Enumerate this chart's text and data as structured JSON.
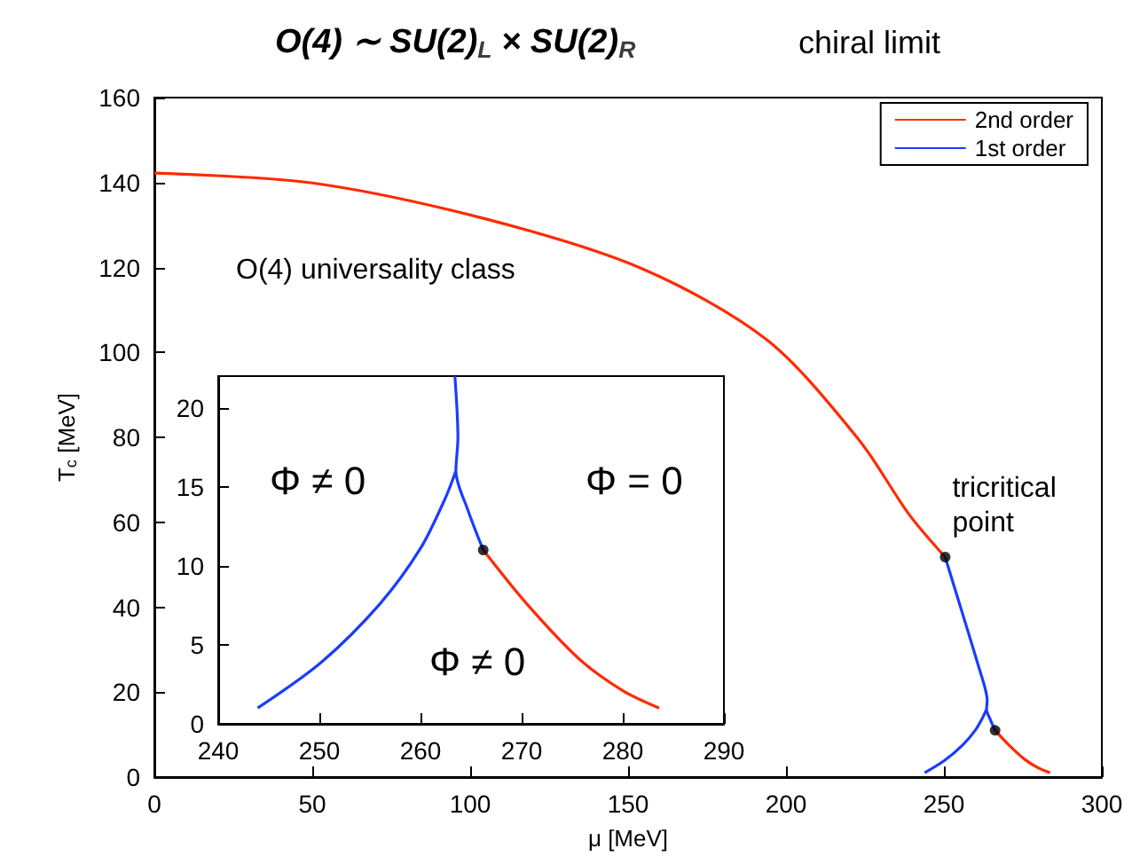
{
  "chart_data": [
    {
      "type": "line",
      "title": "O(4) ∼ SU(2)$_{L}$ × SU(2)$_{R}$",
      "subtitle": "chiral limit",
      "xlabel": "μ [MeV]",
      "ylabel": "T$_{c}$ [MeV]",
      "xlim": [
        0,
        300
      ],
      "xticks": [
        0,
        50,
        100,
        150,
        200,
        250,
        300
      ],
      "ylim": [
        0,
        160
      ],
      "yticks": [
        0,
        20,
        40,
        60,
        80,
        100,
        120,
        140,
        160
      ],
      "grid": false,
      "legend": "top right",
      "annotations": [
        "O(4) universality class",
        {
          "text": "tricritical point",
          "x": 250.4,
          "y": 51.8
        }
      ],
      "series": [
        {
          "name": "2nd order",
          "color": "#ff2a00",
          "x": [
            0,
            50,
            105,
            154.5,
            194,
            223,
            239,
            250.4,
            258,
            266.2,
            270.5,
            275.7,
            280,
            283.6
          ],
          "values": [
            142.2,
            139.9,
            131.4,
            119.7,
            102.9,
            79.5,
            61.8,
            51.8,
            null,
            11.0,
            7.6,
            4.1,
            2.1,
            1.0
          ]
        },
        {
          "name": "1st order",
          "color": "#1a3cff",
          "x": [
            250.4,
            257,
            261,
            263,
            263.7,
            263.5,
            264.7,
            266.2,
            265,
            263.5,
            262.4,
            260,
            256,
            250.2,
            243.9
          ],
          "values": [
            51.8,
            35.8,
            26,
            21,
            18,
            16,
            13.5,
            11.0,
            null,
            16,
            14.2,
            11.1,
            7.6,
            3.9,
            1.0
          ]
        },
        {
          "type": "scatter",
          "color": "#000000",
          "x": [
            250.4,
            266.2
          ],
          "values": [
            51.8,
            11.0
          ]
        }
      ]
    },
    {
      "type": "line",
      "xlim": [
        240,
        290
      ],
      "xticks": [
        240,
        250,
        260,
        270,
        280,
        290
      ],
      "ylim": [
        0,
        22
      ],
      "yticks": [
        0,
        5,
        10,
        15,
        20
      ],
      "grid": false,
      "legend": false,
      "annotations": [
        "Φ ≠ 0",
        "Φ = 0",
        "Φ ≠ 0"
      ],
      "series": [
        {
          "color": "#ff2a00",
          "x": [
            266.2,
            270.5,
            275.7,
            280,
            283.6
          ],
          "values": [
            11.0,
            7.6,
            4.1,
            2.1,
            1.0
          ]
        },
        {
          "color": "#1a3cff",
          "x": [
            263.4,
            263.7,
            263.5,
            264.7,
            266.2,
            265,
            263.5,
            262.4,
            260,
            256,
            250.2,
            243.9
          ],
          "values": [
            22,
            18.1,
            16,
            13.5,
            11.0,
            null,
            16,
            14.2,
            11.1,
            7.6,
            3.9,
            1.0
          ]
        },
        {
          "type": "scatter",
          "color": "#000000",
          "x": [
            266.2
          ],
          "values": [
            11.0
          ]
        }
      ]
    }
  ]
}
